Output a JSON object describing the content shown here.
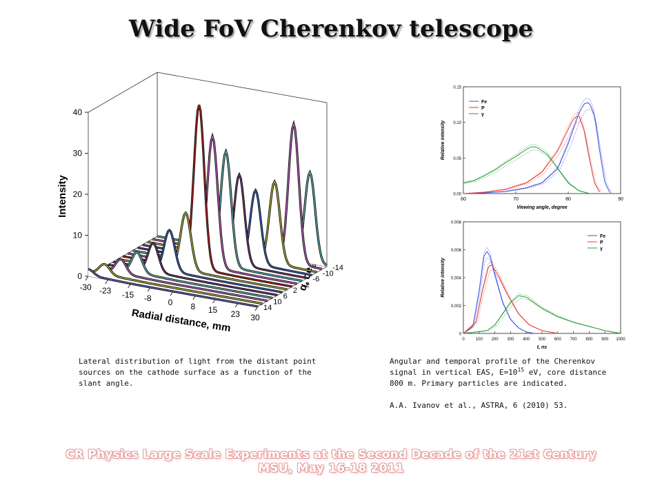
{
  "slide": {
    "title": "Wide FoV Cherenkov telescope",
    "caption_left": "Lateral distribution of light from the distant point sources on the cathode surface as a function of the slant angle.",
    "caption_right_1": "Angular and temporal profile of the Cherenkov signal in vertical EAS, E=10",
    "caption_right_exp": "15",
    "caption_right_2": " eV, core distance 800 m. Primary particles are indicated.",
    "reference": "A.A. Ivanov et al., ASTRA, 6 (2010) 53.",
    "footer_1": "CR Physics Large Scale Experiments at the Second Decade of the 21st Century",
    "footer_2": "MSU, May 16-18 2011"
  },
  "chart_data": [
    {
      "type": "line",
      "view": "3d",
      "zlabel": "Intensity",
      "xlabel": "Radial distance, mm",
      "ylabel": "α, deg.",
      "zlim": [
        0,
        40
      ],
      "z_ticks": [
        "0",
        "10",
        "20",
        "30",
        "40"
      ],
      "x_ticks": [
        "-30",
        "-23",
        "-15",
        "-8",
        "0",
        "8",
        "15",
        "23",
        "30"
      ],
      "y_ticks": [
        "-14",
        "-10",
        "-6",
        "-2",
        "2",
        "6",
        "10",
        "14"
      ],
      "x_range": [
        -30,
        30
      ],
      "y_range": [
        -14,
        14
      ],
      "series_alpha": [
        14,
        12,
        10,
        8,
        6,
        4,
        2,
        0,
        -2,
        -4,
        -6,
        -8,
        -10,
        -12,
        -14
      ],
      "series": [
        {
          "alpha": 14,
          "peak_x": -30,
          "peak": 1.5,
          "color": "#6a6ad0"
        },
        {
          "alpha": 12,
          "peak_x": -26,
          "peak": 2.5,
          "color": "#c0c040"
        },
        {
          "alpha": 10,
          "peak_x": -22,
          "peak": 3.5,
          "color": "#cc66cc"
        },
        {
          "alpha": 8,
          "peak_x": -18,
          "peak": 5,
          "color": "#6ac0c0"
        },
        {
          "alpha": 6,
          "peak_x": -14,
          "peak": 7,
          "color": "#7a3a7a"
        },
        {
          "alpha": 4,
          "peak_x": -10,
          "peak": 10,
          "color": "#3a6ad0"
        },
        {
          "alpha": 2,
          "peak_x": -6,
          "peak": 14,
          "color": "#c0c040"
        },
        {
          "alpha": 0,
          "peak_x": -3,
          "peak": 40,
          "color": "#c02020"
        },
        {
          "alpha": -2,
          "peak_x": 0,
          "peak": 32,
          "color": "#cc66cc"
        },
        {
          "alpha": -4,
          "peak_x": 3,
          "peak": 28,
          "color": "#6ac0c0"
        },
        {
          "alpha": -6,
          "peak_x": 6,
          "peak": 22,
          "color": "#7a3a7a"
        },
        {
          "alpha": -8,
          "peak_x": 10,
          "peak": 18,
          "color": "#3a6ad0"
        },
        {
          "alpha": -10,
          "peak_x": 15,
          "peak": 20,
          "color": "#c0c040"
        },
        {
          "alpha": -12,
          "peak_x": 20,
          "peak": 34,
          "color": "#cc66cc"
        },
        {
          "alpha": -14,
          "peak_x": 24,
          "peak": 22,
          "color": "#6ac0c0"
        }
      ]
    },
    {
      "type": "line",
      "xlabel": "Viewing angle, degree",
      "ylabel": "Relative intensity",
      "xlim": [
        60,
        90
      ],
      "ylim": [
        0,
        0.15
      ],
      "x_ticks": [
        "60",
        "70",
        "80",
        "90"
      ],
      "y_ticks": [
        "0.00",
        "0.05",
        "0.10",
        "0.15"
      ],
      "legend_position": "top-left",
      "series": [
        {
          "name": "Fe",
          "color": "#3b4fd8",
          "x": [
            60,
            64,
            68,
            72,
            75,
            78,
            80,
            82,
            83,
            84,
            85,
            86,
            87,
            88
          ],
          "y": [
            0.0,
            0.001,
            0.003,
            0.008,
            0.015,
            0.035,
            0.07,
            0.112,
            0.126,
            0.128,
            0.11,
            0.06,
            0.015,
            0.001
          ]
        },
        {
          "name": "P",
          "color": "#e03a3a",
          "x": [
            60,
            64,
            68,
            72,
            75,
            78,
            80,
            81,
            82,
            83,
            84,
            85,
            86
          ],
          "y": [
            0.0,
            0.002,
            0.006,
            0.015,
            0.03,
            0.06,
            0.09,
            0.105,
            0.11,
            0.09,
            0.05,
            0.015,
            0.002
          ]
        },
        {
          "name": "γ",
          "color": "#2a9a3a",
          "x": [
            60,
            62,
            64,
            66,
            68,
            70,
            72,
            73,
            74,
            76,
            78,
            80,
            82,
            84
          ],
          "y": [
            0.015,
            0.018,
            0.025,
            0.033,
            0.043,
            0.052,
            0.062,
            0.066,
            0.065,
            0.055,
            0.035,
            0.015,
            0.004,
            0.0
          ]
        }
      ]
    },
    {
      "type": "line",
      "xlabel": "t, ns",
      "ylabel": "Relative intensity",
      "xlim": [
        0,
        1000
      ],
      "ylim": [
        0,
        0.008
      ],
      "x_ticks": [
        "0",
        "100",
        "200",
        "300",
        "400",
        "500",
        "600",
        "700",
        "800",
        "900",
        "1000"
      ],
      "y_ticks": [
        "0",
        "0.002",
        "0.004",
        "0.006",
        "0.008"
      ],
      "legend_position": "top-right",
      "series": [
        {
          "name": "Fe",
          "color": "#3b4fd8",
          "x": [
            0,
            60,
            100,
            130,
            150,
            170,
            200,
            250,
            300,
            350,
            400,
            450
          ],
          "y": [
            0.0,
            0.0005,
            0.003,
            0.0055,
            0.0059,
            0.0055,
            0.0042,
            0.0022,
            0.001,
            0.0004,
            0.0001,
            0.0
          ]
        },
        {
          "name": "P",
          "color": "#e03a3a",
          "x": [
            0,
            80,
            120,
            160,
            180,
            220,
            280,
            350,
            420,
            500,
            600
          ],
          "y": [
            0.0,
            0.0008,
            0.003,
            0.0048,
            0.0049,
            0.0042,
            0.0028,
            0.0014,
            0.0006,
            0.0002,
            0.0
          ]
        },
        {
          "name": "γ",
          "color": "#2a9a3a",
          "x": [
            0,
            150,
            200,
            250,
            300,
            350,
            400,
            450,
            500,
            600,
            700,
            800,
            900,
            1000
          ],
          "y": [
            0.0,
            0.0002,
            0.0006,
            0.0014,
            0.0022,
            0.0027,
            0.0026,
            0.0022,
            0.0018,
            0.0012,
            0.0008,
            0.0005,
            0.0002,
            0.0
          ]
        }
      ]
    }
  ]
}
